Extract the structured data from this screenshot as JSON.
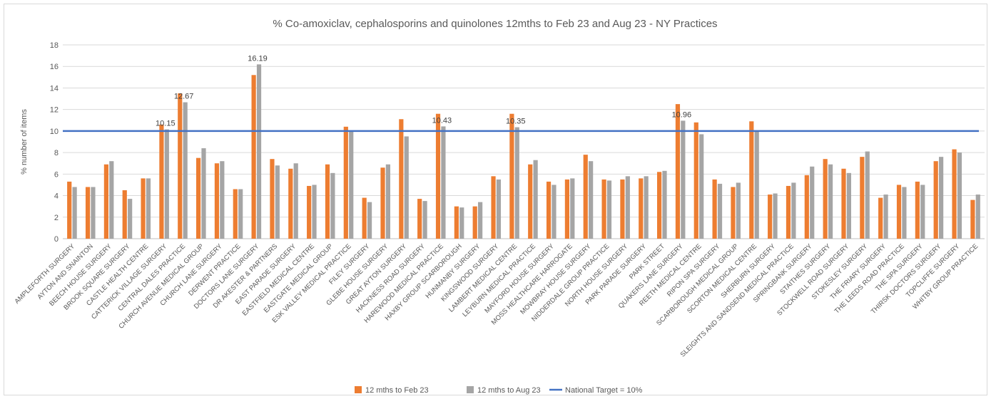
{
  "chart_data": {
    "type": "bar",
    "title": "% Co-amoxiclav, cephalosporins and quinolones 12mths to Feb 23 and Aug 23 - NY Practices",
    "ylabel": "% number of items",
    "xlabel": "",
    "ylim": [
      0,
      18
    ],
    "yticks": [
      0,
      2,
      4,
      6,
      8,
      10,
      12,
      14,
      16,
      18
    ],
    "grid": "horizontal",
    "legend_position": "bottom",
    "categories": [
      "AMPLEFORTH SURGERY",
      "AYTON AND SNAINTON",
      "BEECH HOUSE SURGERY",
      "BROOK SQUARE SURGERY",
      "CASTLE HEALTH CENTRE",
      "CATTERICK VILLAGE SURGERY",
      "CENTRAL DALES PRACTICE",
      "CHURCH AVENUE MEDICAL GROUP",
      "CHURCH LANE SURGERY",
      "DERWENT PRACTICE",
      "DOCTORS LANE SURGERY",
      "DR AKESTER & PARTNERS",
      "EAST PARADE SURGERY",
      "EASTFIELD MEDICAL CENTRE",
      "EASTGATE MEDICAL GROUP",
      "ESK VALLEY MEDICAL PRACTICE",
      "FILEY SURGERY",
      "GLEBE HOUSE SURGERY",
      "GREAT AYTON SURGERY",
      "HACKNESS ROAD SURGERY",
      "HAREWOOD MEDICAL PRACTICE",
      "HAXBY GROUP SCARBOROUGH",
      "HUNMANBY SURGERY",
      "KINGSWOOD SURGERY",
      "LAMBERT MEDICAL CENTRE",
      "LEYBURN MEDICAL PRACTICE",
      "MAYFORD HOUSE SURGERY",
      "MOSS HEALTHCARE HARROGATE",
      "MOWBRAY HOUSE SURGERY",
      "NIDDERDALE GROUP PRACTICE",
      "NORTH HOUSE SURGERY",
      "PARK PARADE SURGERY",
      "PARK STREET",
      "QUAKERS LANE SURGERY",
      "REETH MEDICAL CENTRE",
      "RIPON SPA SURGERY",
      "SCARBOROUGH MEDICAL GROUP",
      "SCORTON MEDICAL CENTRE",
      "SHERBURN SURGERY",
      "SLEIGHTS AND SANDSEND MEDICAL PRACTICE",
      "SPRINGBANK SURGERY",
      "STAITHES SURGERY",
      "STOCKWELL ROAD SURGERY",
      "STOKESLEY SURGERY",
      "THE FRIARY SURGERY",
      "THE LEEDS ROAD PRACTICE",
      "THE SPA SURGERY",
      "THIRSK DOCTORS SURGERY",
      "TOPCLIFFE SURGERY",
      "WHITBY GROUP PRACTICE"
    ],
    "series": [
      {
        "name": "12 mths to Feb 23",
        "color": "#ed7d31",
        "values": [
          5.3,
          4.8,
          6.9,
          4.5,
          5.6,
          10.6,
          13.5,
          7.5,
          7.0,
          4.6,
          15.2,
          7.4,
          6.5,
          4.9,
          6.9,
          10.4,
          3.8,
          6.6,
          11.1,
          3.7,
          11.6,
          3.0,
          3.0,
          5.8,
          11.6,
          6.9,
          5.3,
          5.5,
          7.8,
          5.5,
          5.5,
          5.6,
          6.2,
          12.5,
          10.8,
          5.5,
          4.8,
          10.9,
          4.1,
          4.9,
          5.9,
          7.4,
          6.5,
          7.6,
          3.8,
          5.0,
          5.3,
          7.2,
          8.3,
          3.6
        ]
      },
      {
        "name": "12 mths to Aug 23",
        "color": "#a5a5a5",
        "values": [
          4.8,
          4.8,
          7.2,
          3.7,
          5.6,
          10.15,
          12.67,
          8.4,
          7.2,
          4.6,
          16.19,
          6.8,
          7.0,
          5.0,
          6.1,
          10.0,
          3.4,
          6.9,
          9.5,
          3.5,
          10.43,
          2.9,
          3.4,
          5.5,
          10.35,
          7.3,
          5.0,
          5.6,
          7.2,
          5.4,
          5.8,
          5.8,
          6.3,
          10.96,
          9.7,
          5.1,
          5.2,
          10.0,
          4.2,
          5.2,
          6.7,
          6.9,
          6.1,
          8.1,
          4.1,
          4.8,
          5.0,
          7.6,
          8.0,
          4.1
        ]
      }
    ],
    "reference_line": {
      "name": "National  Target = 10%",
      "value": 10,
      "color": "#4472c4"
    },
    "data_labels": [
      {
        "series": 1,
        "index": 5,
        "text": "10.15"
      },
      {
        "series": 1,
        "index": 6,
        "text": "12.67"
      },
      {
        "series": 1,
        "index": 10,
        "text": "16.19"
      },
      {
        "series": 1,
        "index": 20,
        "text": "10.43"
      },
      {
        "series": 1,
        "index": 24,
        "text": "10.35"
      },
      {
        "series": 1,
        "index": 33,
        "text": "10.96"
      }
    ],
    "legend": [
      {
        "label": "12 mths to Feb 23",
        "color": "#ed7d31",
        "kind": "bar"
      },
      {
        "label": "12 mths to Aug 23",
        "color": "#a5a5a5",
        "kind": "bar"
      },
      {
        "label": "National  Target = 10%",
        "color": "#4472c4",
        "kind": "line"
      }
    ]
  }
}
